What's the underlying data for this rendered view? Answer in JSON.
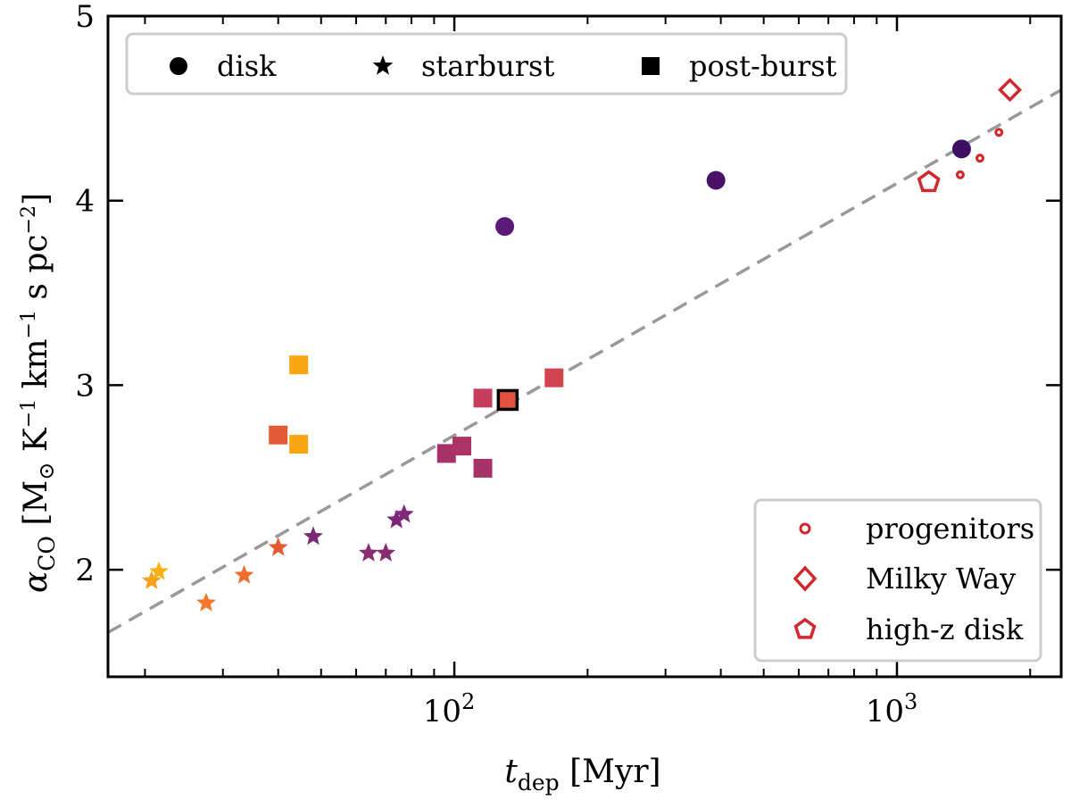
{
  "chart_data": {
    "type": "scatter",
    "title": "",
    "xlabel": {
      "main": "t",
      "sub": "dep",
      "rest": " [Myr]"
    },
    "ylabel": {
      "main": "α",
      "sub": "CO",
      "rest1": " [M",
      "sun": "⊙",
      "rest2": " K",
      "sup1": "−1",
      "rest3": " km",
      "sup2": "−1",
      "rest4": " s pc",
      "sup3": "−2",
      "rest5": "]"
    },
    "xscale": "log",
    "xlim": [
      16.5,
      2350
    ],
    "ylim": [
      1.42,
      5.0
    ],
    "x_tick_labels": [
      {
        "value": 100,
        "base": "10",
        "exp": "2"
      },
      {
        "value": 1000,
        "base": "10",
        "exp": "3"
      }
    ],
    "y_tick_labels": [
      {
        "value": 2,
        "label": "2"
      },
      {
        "value": 3,
        "label": "3"
      },
      {
        "value": 4,
        "label": "4"
      },
      {
        "value": 5,
        "label": "5"
      }
    ],
    "grid": false,
    "fit_line": {
      "style": "dashed",
      "color": "#999999",
      "from": [
        16.5,
        1.66
      ],
      "to": [
        2350,
        4.6
      ]
    },
    "legends": [
      {
        "position": "top",
        "entries": [
          {
            "marker": "circle",
            "label": "disk"
          },
          {
            "marker": "star",
            "label": "starburst"
          },
          {
            "marker": "square",
            "label": "post-burst"
          }
        ]
      },
      {
        "position": "bottom-right",
        "entries": [
          {
            "marker": "progenitor",
            "label": "progenitors"
          },
          {
            "marker": "diamond",
            "label": "Milky Way"
          },
          {
            "marker": "pentagon",
            "label": "high-z disk"
          }
        ]
      }
    ],
    "series": [
      {
        "name": "disk",
        "marker": "circle",
        "points": [
          {
            "x": 130,
            "y": 3.86,
            "color": "#5b1a78"
          },
          {
            "x": 390,
            "y": 4.11,
            "color": "#4a1169"
          },
          {
            "x": 1400,
            "y": 4.28,
            "color": "#3d0f63"
          }
        ]
      },
      {
        "name": "starburst",
        "marker": "star",
        "points": [
          {
            "x": 20.7,
            "y": 1.94,
            "color": "#f8a11c"
          },
          {
            "x": 21.5,
            "y": 1.99,
            "color": "#fbb21a"
          },
          {
            "x": 27.5,
            "y": 1.82,
            "color": "#f3762a"
          },
          {
            "x": 33.5,
            "y": 1.97,
            "color": "#ee6d2f"
          },
          {
            "x": 40,
            "y": 2.12,
            "color": "#e35a33"
          },
          {
            "x": 48,
            "y": 2.18,
            "color": "#7a2b78"
          },
          {
            "x": 64,
            "y": 2.09,
            "color": "#8a2c72"
          },
          {
            "x": 70,
            "y": 2.09,
            "color": "#8a2c72"
          },
          {
            "x": 74,
            "y": 2.27,
            "color": "#7c267a"
          },
          {
            "x": 77,
            "y": 2.3,
            "color": "#82287a"
          }
        ]
      },
      {
        "name": "post-burst",
        "marker": "square",
        "points": [
          {
            "x": 44.5,
            "y": 3.11,
            "color": "#fba513"
          },
          {
            "x": 40,
            "y": 2.73,
            "color": "#e45a34"
          },
          {
            "x": 44.5,
            "y": 2.68,
            "color": "#fba513"
          },
          {
            "x": 96,
            "y": 2.63,
            "color": "#a83268"
          },
          {
            "x": 104,
            "y": 2.67,
            "color": "#ad3366"
          },
          {
            "x": 116,
            "y": 2.55,
            "color": "#a83268"
          },
          {
            "x": 116,
            "y": 2.93,
            "color": "#c63e5c"
          },
          {
            "x": 132,
            "y": 2.92,
            "color": "#e2503e",
            "outlined": true
          },
          {
            "x": 168,
            "y": 3.04,
            "color": "#d2444f"
          }
        ]
      },
      {
        "name": "progenitors",
        "marker": "progenitor",
        "points": [
          {
            "x": 1390,
            "y": 4.14,
            "color": "#d0282c"
          },
          {
            "x": 1540,
            "y": 4.23,
            "color": "#d0282c"
          },
          {
            "x": 1700,
            "y": 4.37,
            "color": "#d0282c"
          }
        ]
      },
      {
        "name": "Milky Way",
        "marker": "diamond",
        "points": [
          {
            "x": 1800,
            "y": 4.6,
            "color": "#d0282c"
          }
        ]
      },
      {
        "name": "high-z disk",
        "marker": "pentagon",
        "points": [
          {
            "x": 1180,
            "y": 4.1,
            "color": "#d0282c"
          }
        ]
      }
    ]
  }
}
